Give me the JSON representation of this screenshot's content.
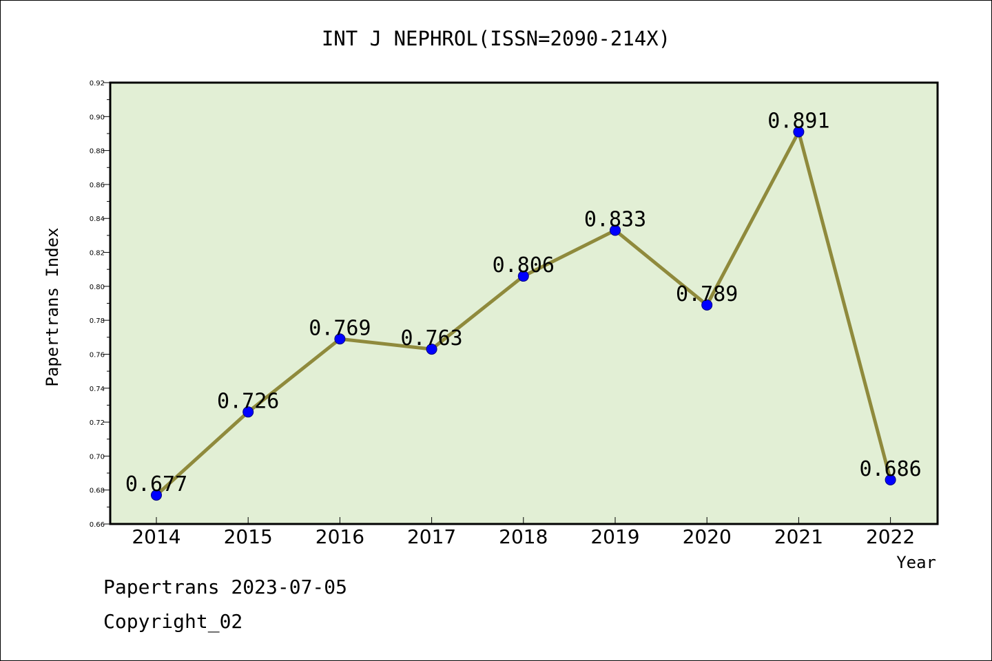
{
  "chart_data": {
    "type": "line",
    "title": "INT J NEPHROL(ISSN=2090-214X)",
    "xlabel": "Year",
    "ylabel": "Papertrans Index",
    "categories": [
      "2014",
      "2015",
      "2016",
      "2017",
      "2018",
      "2019",
      "2020",
      "2021",
      "2022"
    ],
    "series": [
      {
        "values": [
          0.677,
          0.726,
          0.769,
          0.763,
          0.806,
          0.833,
          0.789,
          0.891,
          0.686
        ],
        "labels": [
          "0.677",
          "0.726",
          "0.769",
          "0.763",
          "0.806",
          "0.833",
          "0.789",
          "0.891",
          "0.686"
        ]
      }
    ],
    "ylim": [
      0.66,
      0.92
    ],
    "yticks": [
      "0.66",
      "0.68",
      "0.70",
      "0.72",
      "0.74",
      "0.76",
      "0.78",
      "0.80",
      "0.82",
      "0.84",
      "0.86",
      "0.88",
      "0.90",
      "0.92"
    ],
    "grid": false,
    "legend": "none",
    "colors": {
      "plot_background": "#e2efd5",
      "line": "#8f8a3c",
      "marker": "#0000ff",
      "marker_edge": "#000080",
      "axes": "#000000"
    }
  },
  "footer": {
    "date_line": "Papertrans 2023-07-05",
    "copyright_line": "Copyright_02"
  }
}
